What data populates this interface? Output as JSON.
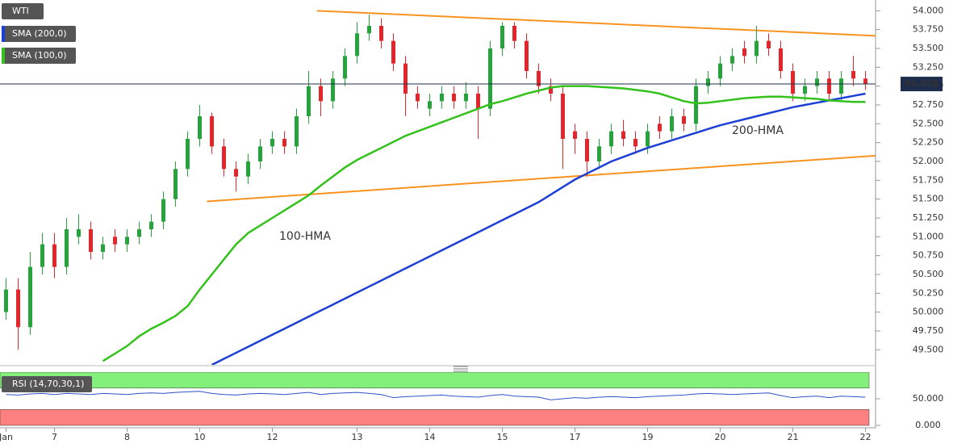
{
  "chart_data": [
    {
      "type": "candlestick",
      "name": "WTI",
      "categories": [
        "Jan",
        null,
        null,
        null,
        "7",
        null,
        null,
        null,
        null,
        null,
        "8",
        null,
        null,
        null,
        null,
        null,
        "10",
        null,
        null,
        null,
        null,
        null,
        "12",
        null,
        null,
        null,
        null,
        null,
        null,
        "13",
        null,
        null,
        null,
        null,
        null,
        "14",
        null,
        null,
        null,
        null,
        null,
        "15",
        null,
        null,
        null,
        null,
        null,
        "17",
        null,
        null,
        null,
        null,
        null,
        "19",
        null,
        null,
        null,
        null,
        null,
        "20",
        null,
        null,
        null,
        null,
        null,
        "21",
        null,
        null,
        null,
        null,
        null,
        "22"
      ],
      "open": [
        50.0,
        50.3,
        49.8,
        50.6,
        50.9,
        50.6,
        51.0,
        51.1,
        50.8,
        51.0,
        50.9,
        51.0,
        51.1,
        51.2,
        51.5,
        51.9,
        52.3,
        52.6,
        52.2,
        51.9,
        51.8,
        52.0,
        52.2,
        52.3,
        52.2,
        52.6,
        53.0,
        52.8,
        53.1,
        53.4,
        53.7,
        53.8,
        53.6,
        53.3,
        52.9,
        52.7,
        52.8,
        52.9,
        52.8,
        52.9,
        52.7,
        53.5,
        53.8,
        53.6,
        53.2,
        53.0,
        52.9,
        52.4,
        52.3,
        52.0,
        52.2,
        52.4,
        52.3,
        52.2,
        52.5,
        52.4,
        52.6,
        52.5,
        53.0,
        53.1,
        53.3,
        53.5,
        53.4,
        53.6,
        53.5,
        53.2,
        52.9,
        53.0,
        53.1,
        52.9,
        53.2,
        53.1
      ],
      "high": [
        50.45,
        50.45,
        50.8,
        51.05,
        51.05,
        51.25,
        51.3,
        51.2,
        51.0,
        51.1,
        51.1,
        51.2,
        51.3,
        51.6,
        52.0,
        52.4,
        52.75,
        52.65,
        52.3,
        52.0,
        52.1,
        52.3,
        52.4,
        52.4,
        52.7,
        53.2,
        53.1,
        53.2,
        53.5,
        53.85,
        53.95,
        53.9,
        53.7,
        53.4,
        53.0,
        52.9,
        53.0,
        53.0,
        53.05,
        53.0,
        53.6,
        53.85,
        53.85,
        53.7,
        53.3,
        53.1,
        53.0,
        52.5,
        52.4,
        52.3,
        52.5,
        52.55,
        52.4,
        52.5,
        52.6,
        52.7,
        52.7,
        53.1,
        53.2,
        53.4,
        53.5,
        53.6,
        53.8,
        53.7,
        53.6,
        53.3,
        53.1,
        53.2,
        53.2,
        53.2,
        53.4,
        53.2
      ],
      "low": [
        49.9,
        49.5,
        49.7,
        50.5,
        50.45,
        50.5,
        50.9,
        50.7,
        50.7,
        50.8,
        50.8,
        50.9,
        51.0,
        51.1,
        51.4,
        51.8,
        52.2,
        52.1,
        51.8,
        51.6,
        51.7,
        51.9,
        52.1,
        52.1,
        52.1,
        52.5,
        52.6,
        52.7,
        53.0,
        53.3,
        53.6,
        53.5,
        53.2,
        52.6,
        52.7,
        52.6,
        52.7,
        52.7,
        52.7,
        52.3,
        52.6,
        53.4,
        53.5,
        53.1,
        52.9,
        52.8,
        51.9,
        52.1,
        51.8,
        51.9,
        52.1,
        52.2,
        52.1,
        52.1,
        52.3,
        52.3,
        52.4,
        52.4,
        52.9,
        53.0,
        53.2,
        53.3,
        53.3,
        53.4,
        53.1,
        52.8,
        52.8,
        52.9,
        52.8,
        52.8,
        53.0,
        52.95
      ],
      "close": [
        50.3,
        49.8,
        50.6,
        50.9,
        50.6,
        51.1,
        51.1,
        50.8,
        50.9,
        50.9,
        51.0,
        51.1,
        51.2,
        51.5,
        51.9,
        52.3,
        52.6,
        52.2,
        51.9,
        51.8,
        52.0,
        52.2,
        52.3,
        52.2,
        52.6,
        53.0,
        52.8,
        53.1,
        53.4,
        53.7,
        53.8,
        53.6,
        53.3,
        52.9,
        52.8,
        52.8,
        52.9,
        52.8,
        52.9,
        52.7,
        53.5,
        53.8,
        53.6,
        53.2,
        53.0,
        52.9,
        52.3,
        52.3,
        52.0,
        52.2,
        52.4,
        52.3,
        52.2,
        52.4,
        52.4,
        52.6,
        52.5,
        53.0,
        53.1,
        53.3,
        53.4,
        53.4,
        53.6,
        53.5,
        53.2,
        52.9,
        53.0,
        53.1,
        52.9,
        53.1,
        53.1,
        53.03
      ],
      "up_color": "#26a33c",
      "down_color": "#e2262b",
      "series": [
        {
          "name": "SMA (200,0)",
          "color": "#1c3fd6",
          "values": [
            null,
            null,
            null,
            null,
            null,
            null,
            null,
            null,
            null,
            null,
            null,
            null,
            null,
            null,
            null,
            null,
            null,
            49.3,
            49.38,
            49.46,
            49.54,
            49.62,
            49.7,
            49.78,
            49.86,
            49.94,
            50.02,
            50.1,
            50.18,
            50.26,
            50.34,
            50.42,
            50.5,
            50.58,
            50.66,
            50.74,
            50.82,
            50.9,
            50.98,
            51.06,
            51.14,
            51.22,
            51.3,
            51.38,
            51.46,
            51.56,
            51.66,
            51.76,
            51.84,
            51.92,
            52.0,
            52.06,
            52.12,
            52.18,
            52.23,
            52.28,
            52.33,
            52.38,
            52.43,
            52.48,
            52.52,
            52.56,
            52.6,
            52.64,
            52.68,
            52.72,
            52.75,
            52.78,
            52.81,
            52.84,
            52.87,
            52.9
          ]
        },
        {
          "name": "SMA (100,0)",
          "color": "#33c21c",
          "values": [
            null,
            null,
            null,
            null,
            null,
            null,
            null,
            null,
            49.35,
            49.45,
            49.55,
            49.68,
            49.78,
            49.86,
            49.95,
            50.08,
            50.3,
            50.5,
            50.7,
            50.9,
            51.05,
            51.15,
            51.25,
            51.35,
            51.45,
            51.55,
            51.68,
            51.8,
            51.92,
            52.02,
            52.1,
            52.18,
            52.26,
            52.34,
            52.4,
            52.46,
            52.52,
            52.58,
            52.64,
            52.7,
            52.76,
            52.8,
            52.85,
            52.9,
            52.94,
            52.98,
            53.0,
            53.0,
            53.0,
            52.99,
            52.98,
            52.97,
            52.95,
            52.93,
            52.9,
            52.85,
            52.8,
            52.77,
            52.78,
            52.8,
            52.82,
            52.84,
            52.85,
            52.86,
            52.86,
            52.85,
            52.84,
            52.83,
            52.81,
            52.8,
            52.79,
            52.79
          ]
        }
      ],
      "trendlines": [
        {
          "color": "#f7931e",
          "x1": 25.7,
          "y1": 54.0,
          "x2": 74.3,
          "y2": 53.65
        },
        {
          "color": "#f7931e",
          "x1": 16.6,
          "y1": 51.47,
          "x2": 74.0,
          "y2": 52.1
        }
      ],
      "annotations": [
        {
          "text": "200-HMA",
          "color": "#5d6fe0"
        },
        {
          "text": "100-HMA",
          "color": "#2aad22"
        }
      ],
      "last_price": 53.028,
      "ylim": [
        49.3,
        54.1
      ],
      "yticks": [
        {
          "value": 49.5,
          "label": "49.500"
        },
        {
          "value": 49.75,
          "label": "49.750"
        },
        {
          "value": 50,
          "label": "50.000"
        },
        {
          "value": 50.25,
          "label": "50.250"
        },
        {
          "value": 50.5,
          "label": "50.500"
        },
        {
          "value": 50.75,
          "label": "50.750"
        },
        {
          "value": 51,
          "label": "51.000"
        },
        {
          "value": 51.25,
          "label": "51.250"
        },
        {
          "value": 51.5,
          "label": "51.500"
        },
        {
          "value": 51.75,
          "label": "51.750"
        },
        {
          "value": 52,
          "label": "52.000"
        },
        {
          "value": 52.25,
          "label": "52.250"
        },
        {
          "value": 52.5,
          "label": "52.500"
        },
        {
          "value": 52.75,
          "label": "52.750"
        },
        {
          "value": 53,
          "label": "53.000"
        },
        {
          "value": 53.25,
          "label": "53.250"
        },
        {
          "value": 53.5,
          "label": "53.500"
        },
        {
          "value": 53.75,
          "label": "53.750"
        },
        {
          "value": 54,
          "label": "54.000"
        }
      ]
    },
    {
      "type": "line",
      "name": "RSI (14,70,30,1)",
      "series": [
        {
          "color": "#3152c8",
          "values": [
            58,
            57,
            59,
            60,
            58,
            60,
            59,
            58,
            60,
            59,
            58,
            60,
            61,
            60,
            62,
            63,
            64,
            60,
            58,
            57,
            59,
            60,
            59,
            58,
            60,
            62,
            58,
            60,
            61,
            62,
            60,
            58,
            52,
            54,
            55,
            56,
            57,
            55,
            54,
            53,
            56,
            58,
            55,
            54,
            53,
            48,
            50,
            52,
            51,
            53,
            54,
            53,
            52,
            54,
            55,
            56,
            57,
            59,
            60,
            59,
            58,
            59,
            60,
            61,
            56,
            52,
            54,
            55,
            52,
            55,
            54,
            53
          ]
        }
      ],
      "bands": {
        "upper": 70,
        "lower": 30,
        "upper_color": "#84f07c",
        "lower_color": "#fd8080"
      },
      "ylim": [
        0,
        100
      ],
      "yticks": [
        {
          "value": 50,
          "label": "50.000"
        },
        {
          "value": 0,
          "label": "0.000"
        }
      ]
    }
  ]
}
